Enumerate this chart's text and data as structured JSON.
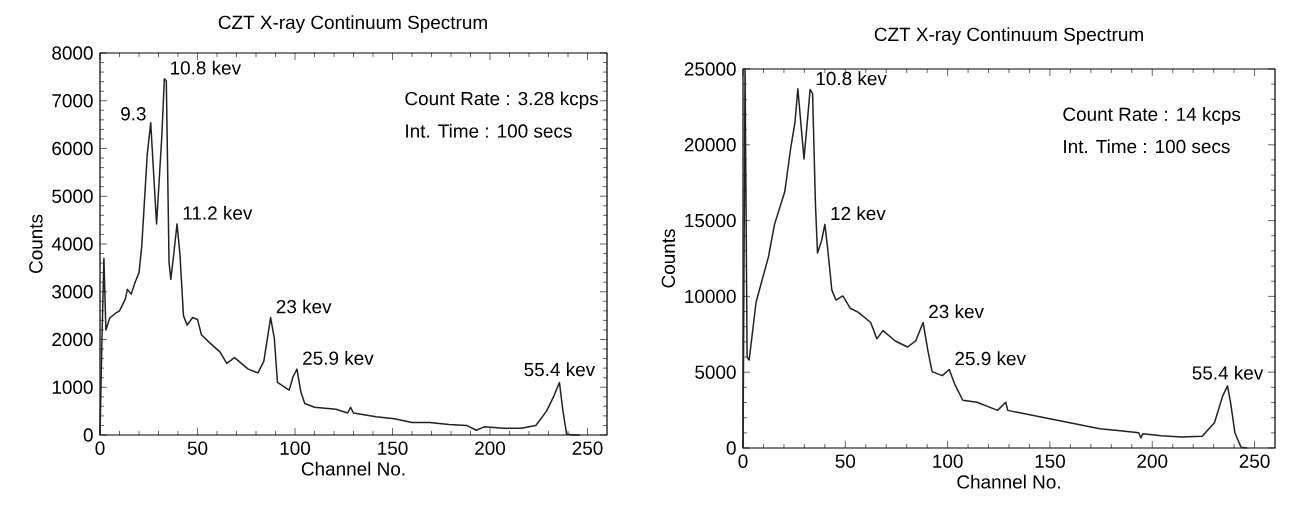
{
  "chart_data": [
    {
      "type": "line",
      "title": "CZT X-ray Continuum Spectrum",
      "xlabel": "Channel No.",
      "ylabel": "Counts",
      "series": [
        {
          "color": "#222222",
          "x": [
            0,
            1,
            2,
            3,
            5,
            8,
            10,
            13,
            14,
            16,
            18,
            20,
            21.4,
            24.2,
            26,
            29,
            31.7,
            33,
            34,
            35.4,
            36.3,
            37.8,
            39.5,
            41,
            42.8,
            44.7,
            47.5,
            50,
            52,
            56,
            61.5,
            65,
            69,
            76,
            81,
            84,
            87.5,
            89.4,
            91,
            97,
            99,
            101,
            103,
            105,
            110,
            121,
            127,
            128.5,
            130,
            141.5,
            151,
            160,
            169,
            179,
            188,
            193,
            197,
            207,
            216,
            223.5,
            229,
            232.8,
            235.6,
            237.4,
            239.3,
            242,
            246
          ],
          "values": [
            0,
            2000,
            3700,
            2200,
            2450,
            2550,
            2600,
            2850,
            3050,
            2950,
            3200,
            3400,
            3950,
            5860,
            6540,
            4420,
            6260,
            7460,
            7420,
            3620,
            3260,
            3780,
            4420,
            3780,
            2500,
            2300,
            2460,
            2420,
            2100,
            1940,
            1740,
            1500,
            1620,
            1380,
            1300,
            1540,
            2460,
            2020,
            1100,
            940,
            1220,
            1380,
            900,
            660,
            580,
            540,
            460,
            580,
            460,
            380,
            340,
            260,
            260,
            220,
            200,
            100,
            170,
            140,
            140,
            200,
            500,
            820,
            1100,
            500,
            20,
            0,
            0
          ]
        }
      ],
      "xlim": [
        0,
        260
      ],
      "ylim": [
        0,
        8000
      ],
      "xticks": [
        0,
        50,
        100,
        150,
        200,
        250
      ],
      "yticks": [
        0,
        1000,
        2000,
        3000,
        4000,
        5000,
        6000,
        7000,
        8000
      ],
      "grid": false,
      "annotations": [
        {
          "text": "9.3",
          "x": 26,
          "y": 6540
        },
        {
          "text": "10.8 kev",
          "x": 33,
          "y": 7460
        },
        {
          "text": "11.2 kev",
          "x": 39.5,
          "y": 4420
        },
        {
          "text": "23 kev",
          "x": 87.5,
          "y": 2460
        },
        {
          "text": "25.9 kev",
          "x": 101,
          "y": 1380
        },
        {
          "text": "55.4 kev",
          "x": 235.6,
          "y": 1100
        },
        "Count Rate : 3.28 kcps",
        "Int. Time : 100 secs"
      ]
    },
    {
      "type": "line",
      "title": "CZT X-ray Continuum Spectrum",
      "xlabel": "Channel No.",
      "ylabel": "Counts",
      "series": [
        {
          "color": "#222222",
          "x": [
            0,
            1,
            2,
            3,
            6.4,
            12.4,
            15.4,
            20.4,
            23.4,
            25.4,
            26.8,
            28.4,
            29.8,
            31.4,
            32.8,
            34,
            35.4,
            36.4,
            38.4,
            40,
            41.4,
            43.4,
            45.4,
            48.8,
            52.4,
            56.4,
            62.4,
            65.4,
            68.4,
            74.4,
            80.4,
            84.4,
            88,
            90.4,
            92.4,
            97.4,
            100.8,
            103.4,
            107.4,
            114.4,
            124.4,
            128.4,
            129.4,
            144.4,
            154.4,
            164.4,
            174.4,
            184.4,
            193.4,
            194.4,
            195.4,
            204.4,
            214.4,
            224.4,
            230.4,
            234.4,
            236.8,
            238.4,
            240.4,
            243.4,
            246.4
          ],
          "values": [
            0,
            25000,
            6000,
            5800,
            9630,
            12590,
            14750,
            16900,
            19870,
            21480,
            23700,
            21230,
            19070,
            21480,
            23650,
            23380,
            16100,
            12860,
            13670,
            14750,
            13130,
            10430,
            9760,
            10030,
            9220,
            8950,
            8280,
            7200,
            7740,
            7060,
            6660,
            7060,
            8280,
            6390,
            5040,
            4770,
            5180,
            4230,
            3150,
            3020,
            2480,
            3020,
            2480,
            2080,
            1810,
            1540,
            1270,
            1130,
            1000,
            670,
            940,
            810,
            730,
            780,
            1670,
            3420,
            4100,
            2890,
            1000,
            50,
            0
          ]
        }
      ],
      "xlim": [
        0,
        260
      ],
      "ylim": [
        0,
        25000
      ],
      "xticks": [
        0,
        50,
        100,
        150,
        200,
        250
      ],
      "yticks": [
        0,
        5000,
        10000,
        15000,
        20000,
        25000
      ],
      "grid": false,
      "annotations": [
        {
          "text": "10.8 kev",
          "x": 32.8,
          "y": 23650
        },
        {
          "text": "12 kev",
          "x": 40,
          "y": 14750
        },
        {
          "text": "23 kev",
          "x": 88,
          "y": 8280
        },
        {
          "text": "25.9 kev",
          "x": 100.8,
          "y": 5180
        },
        {
          "text": "55.4 kev",
          "x": 236.8,
          "y": 4100
        },
        "Count Rate : 14 kcps",
        "Int. Time : 100 secs"
      ]
    }
  ]
}
